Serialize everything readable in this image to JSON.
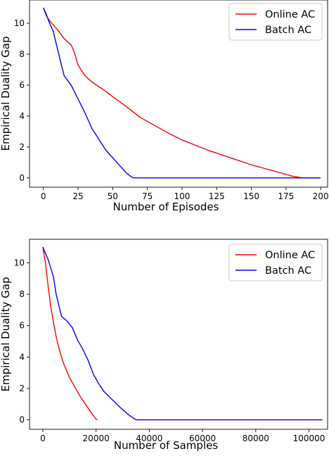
{
  "chart_data": [
    {
      "type": "line",
      "xlabel": "Number of Episodes",
      "ylabel": "Empirical Duality Gap",
      "xlim": [
        -10,
        205
      ],
      "ylim": [
        -0.6,
        11.5
      ],
      "xticks": [
        0,
        25,
        50,
        75,
        100,
        125,
        150,
        175,
        200
      ],
      "yticks": [
        0,
        2,
        4,
        6,
        8,
        10
      ],
      "grid": false,
      "legend_position": "top-right",
      "series": [
        {
          "name": "Online AC",
          "color": "#ff0000",
          "points": [
            [
              0,
              11
            ],
            [
              2,
              10.5
            ],
            [
              5,
              10.1
            ],
            [
              10,
              9.6
            ],
            [
              15,
              9.0
            ],
            [
              20,
              8.6
            ],
            [
              22,
              8.2
            ],
            [
              25,
              7.3
            ],
            [
              30,
              6.6
            ],
            [
              35,
              6.2
            ],
            [
              40,
              5.9
            ],
            [
              45,
              5.6
            ],
            [
              50,
              5.25
            ],
            [
              60,
              4.6
            ],
            [
              70,
              3.9
            ],
            [
              80,
              3.4
            ],
            [
              90,
              2.9
            ],
            [
              100,
              2.45
            ],
            [
              110,
              2.1
            ],
            [
              120,
              1.75
            ],
            [
              130,
              1.45
            ],
            [
              140,
              1.15
            ],
            [
              150,
              0.85
            ],
            [
              160,
              0.6
            ],
            [
              170,
              0.35
            ],
            [
              180,
              0.1
            ],
            [
              187,
              0
            ],
            [
              200,
              0
            ]
          ]
        },
        {
          "name": "Batch AC",
          "color": "#0000ff",
          "points": [
            [
              0,
              11
            ],
            [
              2,
              10.6
            ],
            [
              4,
              10.1
            ],
            [
              7,
              9.5
            ],
            [
              10,
              8.4
            ],
            [
              13,
              7.3
            ],
            [
              15,
              6.6
            ],
            [
              20,
              6.0
            ],
            [
              25,
              5.1
            ],
            [
              30,
              4.2
            ],
            [
              35,
              3.2
            ],
            [
              40,
              2.5
            ],
            [
              45,
              1.8
            ],
            [
              50,
              1.3
            ],
            [
              55,
              0.8
            ],
            [
              60,
              0.3
            ],
            [
              63,
              0.1
            ],
            [
              65,
              0
            ],
            [
              200,
              0
            ]
          ]
        }
      ]
    },
    {
      "type": "line",
      "xlabel": "Number of Samples",
      "ylabel": "Empirical Duality Gap",
      "xlim": [
        -5000,
        107000
      ],
      "ylim": [
        -0.6,
        11.5
      ],
      "xticks": [
        0,
        20000,
        40000,
        60000,
        80000,
        100000
      ],
      "yticks": [
        0,
        2,
        4,
        6,
        8,
        10
      ],
      "grid": false,
      "legend_position": "top-right",
      "series": [
        {
          "name": "Online AC",
          "color": "#ff0000",
          "points": [
            [
              0,
              11
            ],
            [
              1000,
              10.0
            ],
            [
              2000,
              8.5
            ],
            [
              3000,
              7.2
            ],
            [
              4000,
              6.2
            ],
            [
              5000,
              5.3
            ],
            [
              6000,
              4.6
            ],
            [
              7000,
              4.0
            ],
            [
              8000,
              3.5
            ],
            [
              10000,
              2.7
            ],
            [
              12000,
              2.1
            ],
            [
              14000,
              1.5
            ],
            [
              16000,
              1.0
            ],
            [
              18000,
              0.5
            ],
            [
              20000,
              0.05
            ],
            [
              20500,
              0
            ]
          ]
        },
        {
          "name": "Batch AC",
          "color": "#0000ff",
          "points": [
            [
              0,
              11
            ],
            [
              1000,
              10.6
            ],
            [
              2000,
              10.2
            ],
            [
              4000,
              9.1
            ],
            [
              5000,
              8.0
            ],
            [
              6000,
              7.3
            ],
            [
              7000,
              6.6
            ],
            [
              9000,
              6.3
            ],
            [
              11000,
              5.9
            ],
            [
              13000,
              5.1
            ],
            [
              15000,
              4.5
            ],
            [
              17000,
              3.8
            ],
            [
              19000,
              2.9
            ],
            [
              21000,
              2.3
            ],
            [
              23000,
              1.8
            ],
            [
              26000,
              1.3
            ],
            [
              29000,
              0.8
            ],
            [
              32000,
              0.35
            ],
            [
              35000,
              0
            ],
            [
              105000,
              0
            ]
          ]
        }
      ]
    }
  ]
}
